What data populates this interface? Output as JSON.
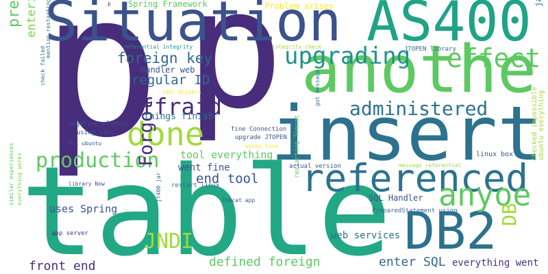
{
  "words": [
    {
      "text": "p",
      "color": "#472d7b"
    },
    {
      "text": "p",
      "color": "#472d7b"
    },
    {
      "text": "table",
      "color": "#22a884"
    },
    {
      "text": "insert",
      "color": "#2c728e"
    },
    {
      "text": "Situation",
      "color": "#3b528b"
    },
    {
      "text": "AS400",
      "color": "#20a386"
    },
    {
      "text": "another",
      "color": "#5ec962"
    },
    {
      "text": "DB2",
      "color": "#2c728e"
    },
    {
      "text": "referenced",
      "color": "#2c728e"
    },
    {
      "text": "done",
      "color": "#a0da39"
    },
    {
      "text": "anyoe",
      "color": "#5ec962"
    },
    {
      "text": "upgrading",
      "color": "#21918c"
    },
    {
      "text": "effect",
      "color": "#5ec962"
    },
    {
      "text": "affraid",
      "color": "#472d7b"
    },
    {
      "text": "administered",
      "color": "#2c728e"
    },
    {
      "text": "production",
      "color": "#5ec962"
    },
    {
      "text": "Forgot",
      "color": "#472d7b"
    },
    {
      "text": "pretty serious",
      "color": "#5ec962"
    },
    {
      "text": "foreign key",
      "color": "#31688e"
    },
    {
      "text": "regular ID",
      "color": "#31688e"
    },
    {
      "text": "JNDI",
      "color": "#a0da39"
    },
    {
      "text": "DB",
      "color": "#a0da39"
    },
    {
      "text": "entering record",
      "color": "#7ad151"
    },
    {
      "text": "end tool",
      "color": "#3b528b"
    },
    {
      "text": "defined foreign",
      "color": "#5ec962"
    },
    {
      "text": "front end",
      "color": "#472d7b"
    },
    {
      "text": "enter SQL",
      "color": "#31688e"
    },
    {
      "text": "everything went",
      "color": "#46327e"
    },
    {
      "text": "web services",
      "color": "#2c728e"
    },
    {
      "text": "uses Spring",
      "color": "#3b528b"
    },
    {
      "text": "tool everything",
      "color": "#5ec962"
    },
    {
      "text": "went fine",
      "color": "#3b528b"
    },
    {
      "text": "Spring Framework",
      "color": "#5ec962"
    },
    {
      "text": "Problem arises",
      "color": "#fde725"
    },
    {
      "text": "Handler web",
      "color": "#3b528b"
    },
    {
      "text": "things finish",
      "color": "#2c728e"
    },
    {
      "text": "SQL Handler",
      "color": "#3b528b"
    },
    {
      "text": "java application",
      "color": "#2c728e"
    },
    {
      "text": "ubuntu everything",
      "color": "#a0da39"
    },
    {
      "text": "checked impossible",
      "color": "#a0da39"
    },
    {
      "text": "linux box",
      "color": "#3b528b"
    },
    {
      "text": "JTOPEN library",
      "color": "#31688e"
    },
    {
      "text": "integrity check",
      "color": "#a0da39"
    },
    {
      "text": "referential integrity",
      "color": "#21918c"
    },
    {
      "text": "jdbc drivers",
      "color": "#fde725"
    },
    {
      "text": "restarting Tomcat",
      "color": "#5ec962"
    },
    {
      "text": "got message",
      "color": "#2c728e"
    },
    {
      "text": "fine Connection",
      "color": "#3b528b"
    },
    {
      "text": "upgrade JTOPEN",
      "color": "#3b528b"
    },
    {
      "text": "works fine",
      "color": "#fde725"
    },
    {
      "text": "actual version",
      "color": "#3b528b"
    },
    {
      "text": "message referential",
      "color": "#a0da39"
    },
    {
      "text": "restart linux",
      "color": "#31688e"
    },
    {
      "text": "Tomcat app",
      "color": "#3b528b"
    },
    {
      "text": "PreparedStatement using",
      "color": "#31688e"
    },
    {
      "text": "jt400 jar",
      "color": "#31688e"
    },
    {
      "text": "negative effects",
      "color": "#3b528b"
    },
    {
      "text": "using jdbc",
      "color": "#3b528b"
    },
    {
      "text": "box ubuntu",
      "color": "#3b528b"
    },
    {
      "text": "library Now",
      "color": "#3b528b"
    },
    {
      "text": "app server",
      "color": "#472d7b"
    },
    {
      "text": "check failed",
      "color": "#2c728e"
    },
    {
      "text": "mention restarting",
      "color": "#2c728e"
    },
    {
      "text": "similar experiences",
      "color": "#5ec962"
    },
    {
      "text": "everything works",
      "color": "#7ad151"
    },
    {
      "text": "p",
      "color": "#472d7b"
    }
  ]
}
